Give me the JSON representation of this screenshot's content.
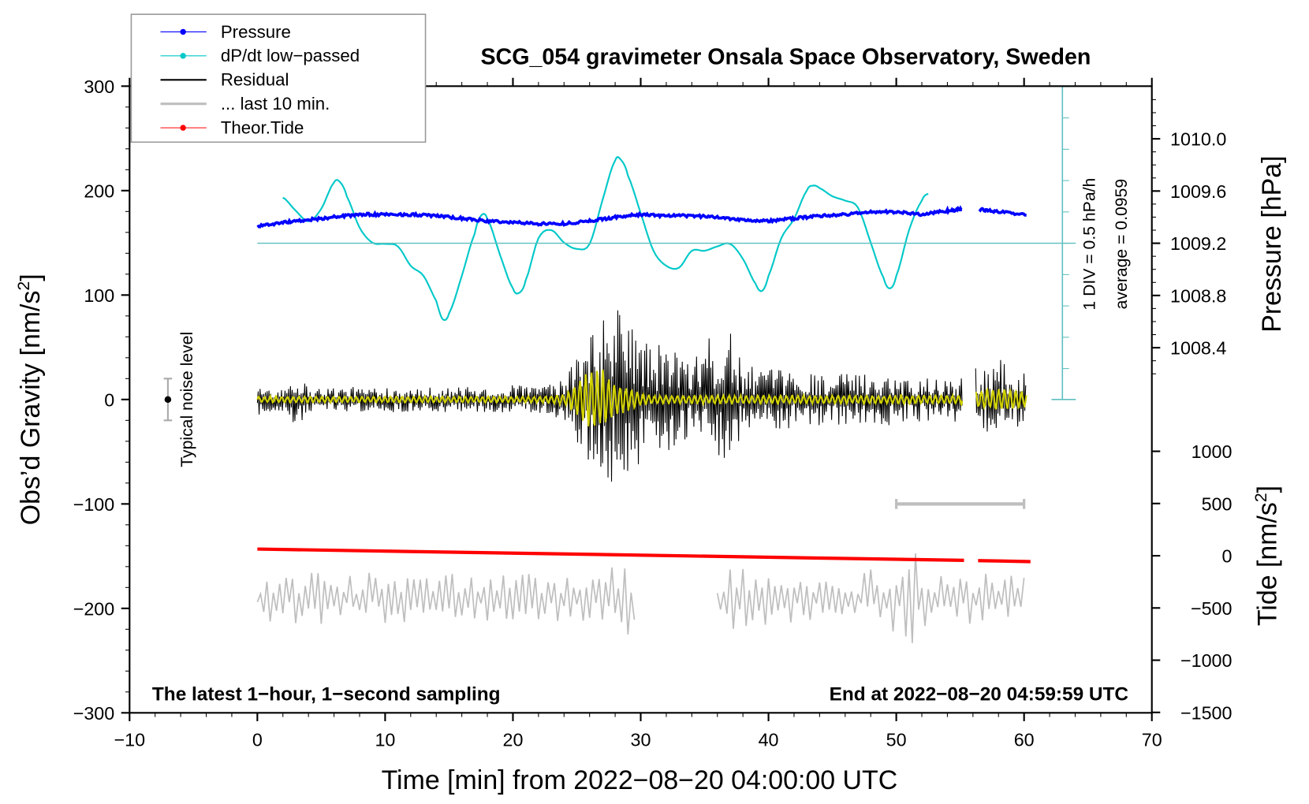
{
  "chart_data": {
    "type": "line",
    "title": "SCG_054 gravimeter Onsala Space Observatory, Sweden",
    "xlabel": "Time [min] from 2022−08−20 04:00:00 UTC",
    "ylabel_left": {
      "base": "Obs’d Gravity [nm/s",
      "sup": "2",
      "end": "]"
    },
    "ylabel_right_pressure": "Pressure [hPa]",
    "ylabel_right_tide": {
      "base": "Tide [nm/s",
      "sup": "2",
      "end": "]"
    },
    "xlim": [
      -10,
      70
    ],
    "ylim_left": [
      -300,
      300
    ],
    "x_ticks": [
      "−10",
      "0",
      "10",
      "20",
      "30",
      "40",
      "50",
      "60",
      "70"
    ],
    "x_tick_values": [
      -10,
      0,
      10,
      20,
      30,
      40,
      50,
      60,
      70
    ],
    "y_ticks_left": [
      "300",
      "200",
      "100",
      "0",
      "−100",
      "−200",
      "−300"
    ],
    "y_tick_values_left": [
      300,
      200,
      100,
      0,
      -100,
      -200,
      -300
    ],
    "pressure_ticks": [
      "1010.0",
      "1009.6",
      "1009.2",
      "1008.8",
      "1008.4"
    ],
    "pressure_tick_values": [
      1010.0,
      1009.6,
      1009.2,
      1008.8,
      1008.4
    ],
    "tide_ticks": [
      "1000",
      "500",
      "0",
      "−500",
      "−1000",
      "−1500"
    ],
    "tide_tick_values": [
      1000,
      500,
      0,
      -500,
      -1000,
      -1500
    ],
    "annotation_bottom_left": "The latest 1−hour, 1−second sampling",
    "annotation_bottom_right": "End at 2022−08−20 04:59:59 UTC",
    "dpdt_scale_label": "1 DIV = 0.5 hPa/h",
    "dpdt_average_label": "average = 0.0959",
    "noise_label": "Typical noise level",
    "noise_level": {
      "x": -7,
      "half_range": 20
    },
    "last10_bar": {
      "x": [
        50,
        60
      ],
      "y": -100
    },
    "legend": {
      "position": "top-left",
      "entries": [
        {
          "label": "Pressure",
          "color": "#0000ff",
          "style": "line-dot"
        },
        {
          "label": "dP/dt low−passed",
          "color": "#00c8c8",
          "style": "line-dot"
        },
        {
          "label": "Residual",
          "color": "#000000",
          "style": "line"
        },
        {
          "label": "... last 10 min.",
          "color": "#bebebe",
          "style": "line"
        },
        {
          "label": "Theor.Tide",
          "color": "#ff0000",
          "style": "line-dot"
        }
      ]
    },
    "series": [
      {
        "name": "Pressure",
        "unit": "hPa",
        "color": "#0000ff",
        "x": [
          0,
          2,
          4,
          6,
          8,
          10,
          12,
          14,
          16,
          18,
          20,
          22,
          24,
          26,
          28,
          30,
          32,
          34,
          36,
          38,
          40,
          42,
          44,
          46,
          48,
          50,
          52,
          54,
          55.2,
          56.5,
          58,
          60.3
        ],
        "y": [
          1009.33,
          1009.36,
          1009.38,
          1009.4,
          1009.42,
          1009.42,
          1009.42,
          1009.41,
          1009.39,
          1009.37,
          1009.36,
          1009.35,
          1009.35,
          1009.37,
          1009.4,
          1009.42,
          1009.41,
          1009.41,
          1009.4,
          1009.38,
          1009.37,
          1009.39,
          1009.41,
          1009.42,
          1009.44,
          1009.44,
          1009.42,
          1009.45,
          1009.46,
          1009.46,
          1009.44,
          1009.42
        ],
        "gaps": [
          [
            55.3,
            56.4
          ]
        ]
      },
      {
        "name": "dP/dt low-passed",
        "unit": "hPa/h",
        "color": "#00c8c8",
        "x": [
          2,
          3,
          4,
          5,
          6,
          6.5,
          7,
          8,
          9,
          10,
          11,
          12,
          13,
          14,
          14.5,
          15,
          16,
          17,
          17.5,
          18,
          19,
          20,
          20.5,
          21,
          22,
          23,
          24,
          25,
          26,
          27,
          28,
          28.5,
          29,
          30,
          31,
          32,
          33,
          34,
          35,
          36,
          37,
          38,
          39,
          39.5,
          40,
          41,
          42,
          43,
          43.5,
          44,
          45,
          46,
          47,
          48,
          49,
          49.5,
          50,
          51,
          52,
          52.5
        ],
        "y": [
          0.73,
          0.52,
          0.35,
          0.55,
          0.97,
          0.97,
          0.75,
          0.25,
          0.01,
          -0.01,
          -0.05,
          -0.36,
          -0.52,
          -0.92,
          -1.21,
          -1.12,
          -0.52,
          0.15,
          0.44,
          0.39,
          -0.19,
          -0.72,
          -0.79,
          -0.59,
          0.08,
          0.21,
          0.01,
          -0.09,
          -0.01,
          0.68,
          1.32,
          1.32,
          1.08,
          0.48,
          -0.12,
          -0.36,
          -0.39,
          -0.12,
          -0.12,
          -0.05,
          -0.01,
          -0.25,
          -0.65,
          -0.76,
          -0.52,
          0.08,
          0.39,
          0.84,
          0.92,
          0.88,
          0.75,
          0.68,
          0.57,
          0.01,
          -0.55,
          -0.72,
          -0.52,
          0.21,
          0.68,
          0.79
        ]
      },
      {
        "name": "Residual",
        "unit": "nm/s2",
        "color": "#000000",
        "envelope_x_step_min": 1,
        "envelope": [
          15,
          12,
          12,
          30,
          12,
          12,
          12,
          12,
          12,
          12,
          14,
          12,
          12,
          12,
          12,
          12,
          12,
          12,
          12,
          12,
          14,
          14,
          14,
          16,
          20,
          40,
          70,
          80,
          85,
          110,
          60,
          55,
          50,
          55,
          30,
          60,
          60,
          65,
          35,
          30,
          30,
          28,
          28,
          28,
          25,
          25,
          25,
          25,
          25,
          25,
          25,
          22,
          22,
          22,
          22,
          22,
          30,
          35,
          40,
          30,
          25
        ],
        "gaps": [
          [
            55.2,
            56.2
          ]
        ]
      },
      {
        "name": "Residual filtered",
        "unit": "nm/s2",
        "color": "#d2d200",
        "envelope_x_step_min": 1,
        "envelope": [
          3,
          3,
          3,
          3,
          3,
          3,
          3,
          3,
          3,
          3,
          3,
          3,
          3,
          3,
          3,
          3,
          3,
          3,
          3,
          3,
          3,
          3,
          3,
          4,
          5,
          15,
          30,
          30,
          15,
          12,
          6,
          4,
          4,
          4,
          4,
          4,
          4,
          4,
          4,
          4,
          4,
          4,
          4,
          4,
          4,
          4,
          4,
          4,
          4,
          4,
          4,
          4,
          4,
          4,
          4,
          4,
          8,
          10,
          10,
          10,
          8
        ],
        "gaps": [
          [
            55.2,
            56.2
          ]
        ]
      },
      {
        "name": "... last 10 min.",
        "unit": "nm/s2",
        "color": "#bebebe",
        "baseline": -190,
        "envelope_x_step_min": 1,
        "envelope": [
          25,
          25,
          25,
          25,
          25,
          25,
          25,
          25,
          25,
          25,
          25,
          25,
          25,
          25,
          25,
          25,
          25,
          25,
          25,
          25,
          25,
          25,
          25,
          25,
          25,
          25,
          25,
          25,
          35,
          35,
          30,
          0,
          0,
          0,
          0,
          0,
          30,
          30,
          30,
          30,
          25,
          25,
          25,
          25,
          25,
          25,
          25,
          25,
          30,
          35,
          45,
          70,
          50,
          30,
          25,
          25,
          25,
          25,
          25,
          25,
          20
        ],
        "gaps": [
          [
            29.6,
            35.9
          ]
        ]
      },
      {
        "name": "Theor.Tide",
        "unit": "nm/s2",
        "color": "#ff0000",
        "x": [
          0,
          55.3,
          56.4,
          60.5
        ],
        "y": [
          64,
          -44,
          -46,
          -56
        ],
        "gaps": [
          [
            55.3,
            56.4
          ]
        ]
      }
    ]
  }
}
